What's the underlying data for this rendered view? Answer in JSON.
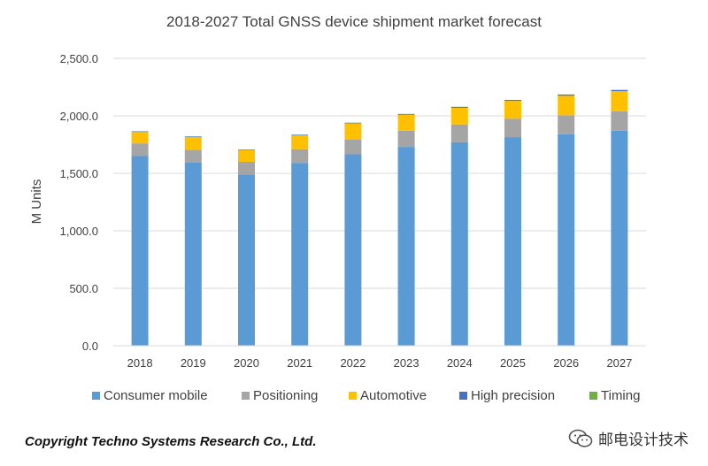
{
  "chart_data": {
    "type": "bar",
    "stacked": true,
    "title": "2018-2027 Total GNSS device shipment market forecast",
    "ylabel": "M Units",
    "xlabel": "",
    "ylim": [
      0,
      2500
    ],
    "yticks": [
      "0.0",
      "500.0",
      "1,000.0",
      "1,500.0",
      "2,000.0",
      "2,500.0"
    ],
    "ytick_values": [
      0,
      500,
      1000,
      1500,
      2000,
      2500
    ],
    "grid": true,
    "legend": "bottom",
    "categories": [
      "2018",
      "2019",
      "2020",
      "2021",
      "2022",
      "2023",
      "2024",
      "2025",
      "2026",
      "2027"
    ],
    "series": [
      {
        "name": "Consumer mobile",
        "color": "#5b9bd5",
        "values": [
          1650,
          1595,
          1490,
          1590,
          1665,
          1730,
          1770,
          1815,
          1840,
          1870
        ]
      },
      {
        "name": "Positioning",
        "color": "#a5a5a5",
        "values": [
          110,
          110,
          110,
          120,
          130,
          140,
          155,
          160,
          165,
          170
        ]
      },
      {
        "name": "Automotive",
        "color": "#ffc000",
        "values": [
          100,
          110,
          100,
          120,
          140,
          140,
          145,
          155,
          170,
          175
        ]
      },
      {
        "name": "High precision",
        "color": "#4472c4",
        "values": [
          5,
          5,
          5,
          5,
          5,
          6,
          8,
          8,
          10,
          10
        ]
      },
      {
        "name": "Timing",
        "color": "#70ad47",
        "values": [
          1,
          1,
          1,
          1,
          1,
          1,
          1,
          1,
          1,
          1
        ]
      }
    ]
  },
  "footer": {
    "copyright": "Copyright Techno Systems Research Co., Ltd.",
    "watermark_text": "邮电设计技术",
    "watermark_icon": "wechat-icon"
  }
}
